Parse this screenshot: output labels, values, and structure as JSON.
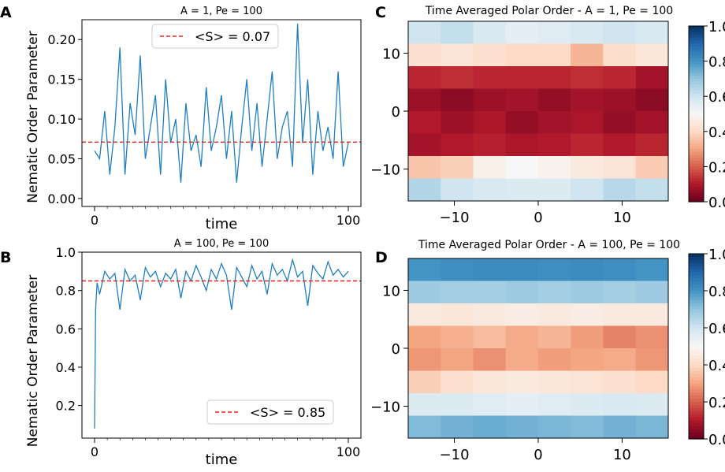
{
  "figure": {
    "panel_labels": [
      "A",
      "B",
      "C",
      "D"
    ],
    "colorbar_ticks": [
      "0.0",
      "0.2",
      "0.4",
      "0.6",
      "0.8",
      "1.0"
    ]
  },
  "chart_data": [
    {
      "panel": "A",
      "type": "line",
      "title": "A = 1, Pe = 100",
      "xlabel": "time",
      "ylabel": "Nematic Order Parameter",
      "xlim": [
        0,
        100
      ],
      "ylim": [
        -0.01,
        0.225
      ],
      "xticks": [
        0,
        100
      ],
      "yticks": [
        0.0,
        0.05,
        0.1,
        0.15,
        0.2
      ],
      "ytick_labels": [
        "0.00",
        "0.05",
        "0.10",
        "0.15",
        "0.20"
      ],
      "series": [
        {
          "name": "Nematic Order Parameter",
          "color": "#1f7fbf",
          "x": [
            0,
            2,
            4,
            6,
            8,
            10,
            12,
            14,
            16,
            18,
            20,
            22,
            24,
            26,
            28,
            30,
            32,
            34,
            36,
            38,
            40,
            42,
            44,
            46,
            48,
            50,
            52,
            54,
            56,
            58,
            60,
            62,
            64,
            66,
            68,
            70,
            72,
            74,
            76,
            78,
            80,
            82,
            84,
            86,
            88,
            90,
            92,
            94,
            96,
            98,
            100
          ],
          "values": [
            0.06,
            0.05,
            0.11,
            0.03,
            0.09,
            0.19,
            0.03,
            0.12,
            0.08,
            0.18,
            0.05,
            0.09,
            0.13,
            0.03,
            0.15,
            0.07,
            0.1,
            0.02,
            0.12,
            0.06,
            0.08,
            0.04,
            0.14,
            0.06,
            0.09,
            0.13,
            0.05,
            0.11,
            0.02,
            0.09,
            0.15,
            0.06,
            0.12,
            0.04,
            0.1,
            0.16,
            0.05,
            0.09,
            0.11,
            0.04,
            0.22,
            0.07,
            0.15,
            0.03,
            0.11,
            0.06,
            0.09,
            0.05,
            0.16,
            0.04,
            0.07
          ]
        }
      ],
      "reference_line": {
        "value": 0.071,
        "label": "<S> = 0.07",
        "color": "#e8231b"
      },
      "legend_position": "top-center"
    },
    {
      "panel": "B",
      "type": "line",
      "title": "A = 100, Pe = 100",
      "xlabel": "time",
      "ylabel": "Nematic Order Parameter",
      "xlim": [
        0,
        100
      ],
      "ylim": [
        0.03,
        1.0
      ],
      "xticks": [
        0,
        100
      ],
      "yticks": [
        0.2,
        0.4,
        0.6,
        0.8,
        1.0
      ],
      "ytick_labels": [
        "0.2",
        "0.4",
        "0.6",
        "0.8",
        "1.0"
      ],
      "series": [
        {
          "name": "Nematic Order Parameter",
          "color": "#1f7fbf",
          "x": [
            0,
            0.4,
            1,
            2,
            4,
            6,
            8,
            10,
            12,
            14,
            16,
            18,
            20,
            22,
            24,
            26,
            28,
            30,
            32,
            34,
            36,
            38,
            40,
            42,
            44,
            46,
            48,
            50,
            52,
            54,
            56,
            58,
            60,
            62,
            64,
            66,
            68,
            70,
            72,
            74,
            76,
            78,
            80,
            82,
            84,
            86,
            88,
            90,
            92,
            94,
            96,
            98,
            100
          ],
          "values": [
            0.08,
            0.7,
            0.84,
            0.78,
            0.9,
            0.86,
            0.89,
            0.7,
            0.91,
            0.85,
            0.88,
            0.75,
            0.92,
            0.87,
            0.9,
            0.82,
            0.89,
            0.86,
            0.91,
            0.76,
            0.9,
            0.85,
            0.93,
            0.87,
            0.8,
            0.91,
            0.86,
            0.94,
            0.88,
            0.7,
            0.92,
            0.87,
            0.82,
            0.93,
            0.86,
            0.9,
            0.78,
            0.94,
            0.88,
            0.91,
            0.85,
            0.96,
            0.87,
            0.9,
            0.72,
            0.93,
            0.89,
            0.86,
            0.95,
            0.88,
            0.91,
            0.87,
            0.9
          ]
        }
      ],
      "reference_line": {
        "value": 0.85,
        "label": "<S> = 0.85",
        "color": "#e8231b"
      },
      "legend_position": "bottom-right"
    },
    {
      "panel": "C",
      "type": "heatmap",
      "title": "Time Averaged Polar Order - A = 1, Pe = 100",
      "colormap": "RdBu",
      "vmin": 0.0,
      "vmax": 1.0,
      "x_range": [
        -15.5,
        15.5
      ],
      "y_range": [
        -15.5,
        15.5
      ],
      "xticks": [
        -10,
        0,
        10
      ],
      "yticks": [
        -10,
        0,
        10
      ],
      "xtick_labels": [
        "−10",
        "0",
        "10"
      ],
      "ytick_labels": [
        "−10",
        "0",
        "10"
      ],
      "values": [
        [
          0.6,
          0.62,
          0.58,
          0.55,
          0.56,
          0.58,
          0.6,
          0.58
        ],
        [
          0.42,
          0.43,
          0.42,
          0.4,
          0.4,
          0.33,
          0.41,
          0.44
        ],
        [
          0.12,
          0.13,
          0.12,
          0.12,
          0.12,
          0.13,
          0.12,
          0.08
        ],
        [
          0.07,
          0.05,
          0.07,
          0.08,
          0.06,
          0.08,
          0.07,
          0.05
        ],
        [
          0.1,
          0.07,
          0.09,
          0.06,
          0.08,
          0.09,
          0.06,
          0.08
        ],
        [
          0.08,
          0.1,
          0.11,
          0.09,
          0.1,
          0.12,
          0.1,
          0.12
        ],
        [
          0.36,
          0.38,
          0.47,
          0.5,
          0.48,
          0.45,
          0.43,
          0.37
        ],
        [
          0.65,
          0.6,
          0.58,
          0.57,
          0.57,
          0.6,
          0.64,
          0.62
        ]
      ]
    },
    {
      "panel": "D",
      "type": "heatmap",
      "title": "Time Averaged Polar Order - A = 100, Pe = 100",
      "colormap": "RdBu",
      "vmin": 0.0,
      "vmax": 1.0,
      "x_range": [
        -15.5,
        15.5
      ],
      "y_range": [
        -15.5,
        15.5
      ],
      "xticks": [
        -10,
        0,
        10
      ],
      "yticks": [
        -10,
        0,
        10
      ],
      "xtick_labels": [
        "−10",
        "0",
        "10"
      ],
      "ytick_labels": [
        "−10",
        "0",
        "10"
      ],
      "values": [
        [
          0.8,
          0.81,
          0.82,
          0.82,
          0.81,
          0.82,
          0.81,
          0.8
        ],
        [
          0.68,
          0.67,
          0.67,
          0.68,
          0.67,
          0.68,
          0.67,
          0.68
        ],
        [
          0.45,
          0.44,
          0.45,
          0.46,
          0.45,
          0.46,
          0.45,
          0.45
        ],
        [
          0.3,
          0.32,
          0.34,
          0.31,
          0.33,
          0.29,
          0.25,
          0.27
        ],
        [
          0.28,
          0.3,
          0.27,
          0.31,
          0.29,
          0.3,
          0.31,
          0.28
        ],
        [
          0.38,
          0.42,
          0.44,
          0.45,
          0.44,
          0.43,
          0.42,
          0.4
        ],
        [
          0.57,
          0.57,
          0.56,
          0.55,
          0.56,
          0.57,
          0.58,
          0.57
        ],
        [
          0.72,
          0.74,
          0.75,
          0.74,
          0.73,
          0.72,
          0.74,
          0.73
        ]
      ]
    }
  ]
}
